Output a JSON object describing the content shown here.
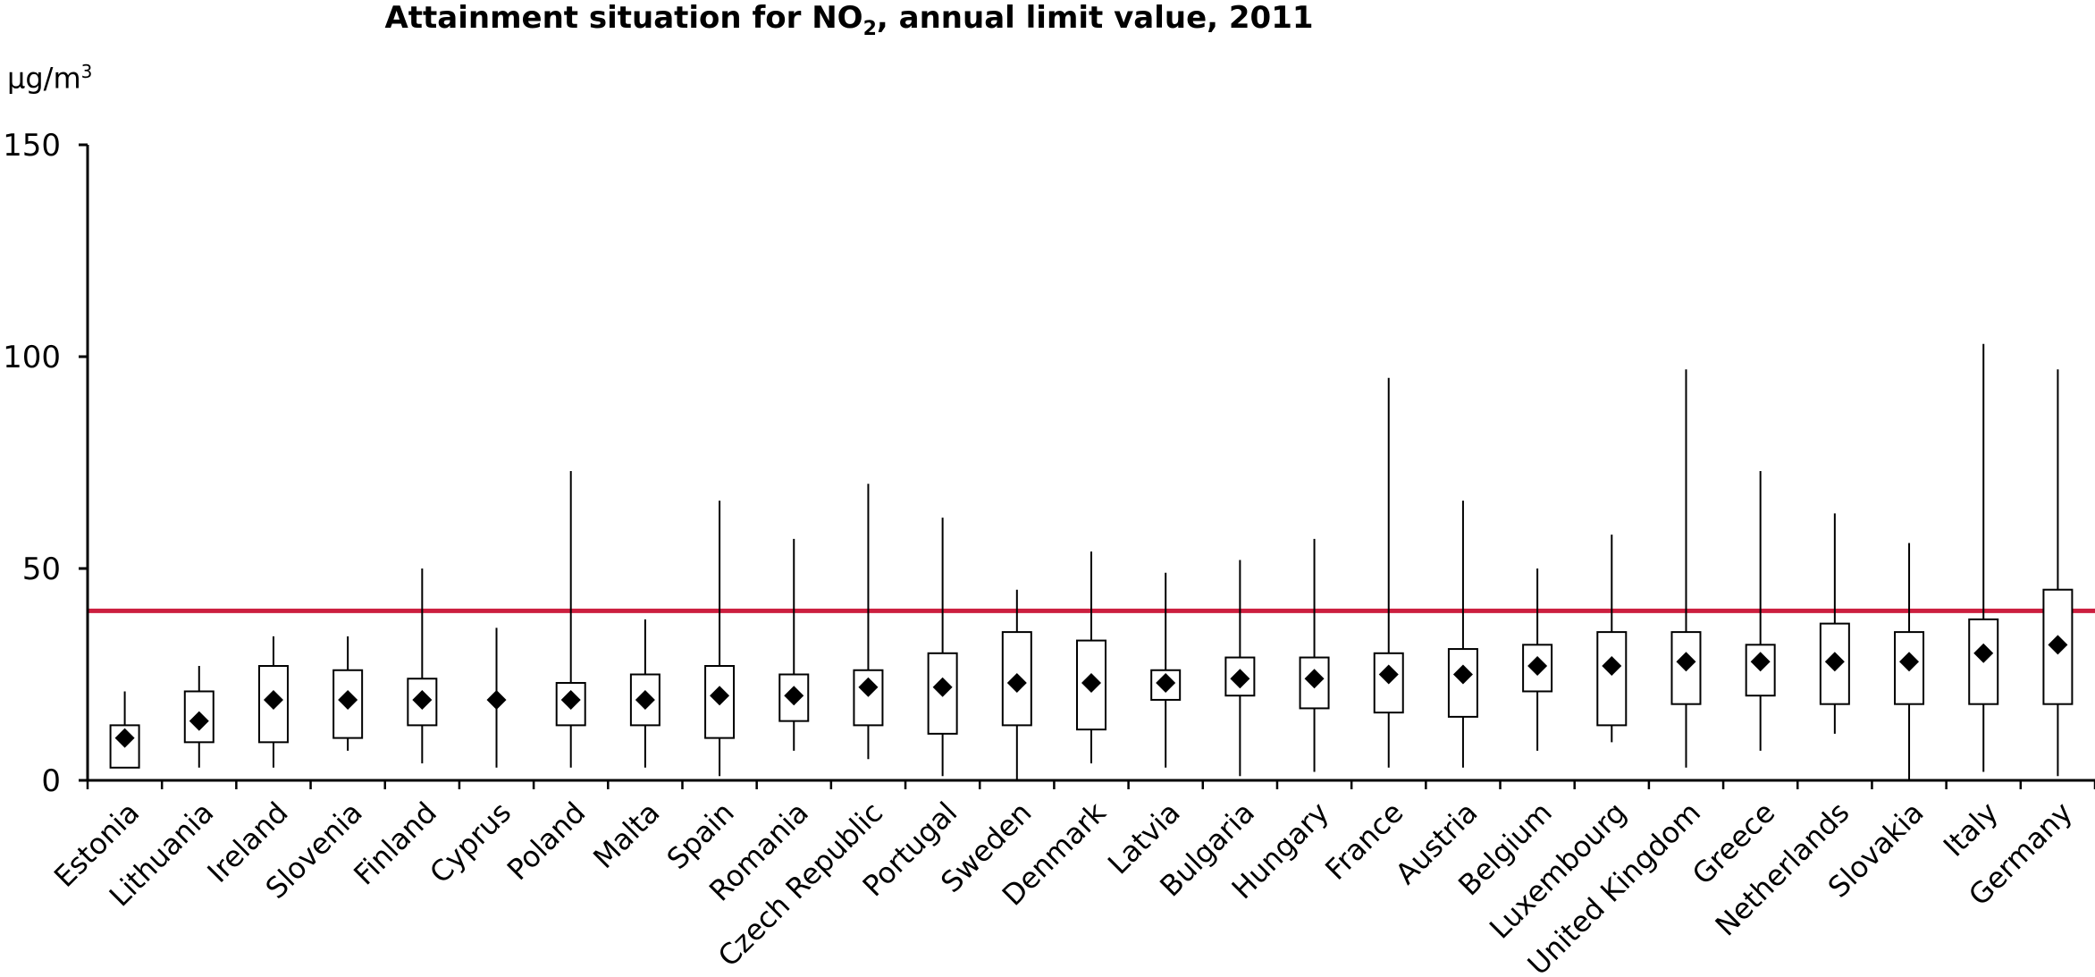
{
  "chart_data": {
    "type": "boxplot",
    "title": {
      "pre": "Attainment situation for NO",
      "sub": "2",
      "post": ", annual limit value, 2011"
    },
    "ylabel": {
      "base": "µg/m",
      "sup": "3"
    },
    "ylim": [
      0,
      150
    ],
    "yticks": [
      0,
      50,
      100,
      150
    ],
    "limit_value": 40,
    "limit_color": "#cc1f3f",
    "categories": [
      "Estonia",
      "Lithuania",
      "Ireland",
      "Slovenia",
      "Finland",
      "Cyprus",
      "Poland",
      "Malta",
      "Spain",
      "Romania",
      "Czech Republic",
      "Portugal",
      "Sweden",
      "Denmark",
      "Latvia",
      "Bulgaria",
      "Hungary",
      "France",
      "Austria",
      "Belgium",
      "Luxembourg",
      "United Kingdom",
      "Greece",
      "Netherlands",
      "Slovakia",
      "Italy",
      "Germany"
    ],
    "min": [
      3,
      3,
      3,
      7,
      4,
      3,
      3,
      3,
      1,
      7,
      5,
      1,
      0,
      4,
      3,
      1,
      2,
      3,
      3,
      7,
      9,
      3,
      7,
      11,
      0,
      2,
      1
    ],
    "q1": [
      3,
      9,
      9,
      10,
      13,
      19,
      13,
      13,
      10,
      14,
      13,
      11,
      13,
      12,
      19,
      20,
      17,
      16,
      15,
      21,
      13,
      18,
      20,
      18,
      18,
      18,
      18
    ],
    "median": [
      10,
      14,
      19,
      19,
      19,
      19,
      19,
      19,
      20,
      20,
      22,
      22,
      23,
      23,
      23,
      24,
      24,
      25,
      25,
      27,
      27,
      28,
      28,
      28,
      28,
      30,
      32
    ],
    "q3": [
      13,
      21,
      27,
      26,
      24,
      19,
      23,
      25,
      27,
      25,
      26,
      30,
      35,
      33,
      26,
      29,
      29,
      30,
      31,
      32,
      35,
      35,
      32,
      37,
      35,
      38,
      45
    ],
    "max": [
      21,
      27,
      34,
      34,
      50,
      36,
      73,
      38,
      66,
      57,
      70,
      62,
      45,
      54,
      49,
      52,
      57,
      95,
      66,
      50,
      58,
      97,
      73,
      63,
      56,
      103,
      97
    ]
  }
}
